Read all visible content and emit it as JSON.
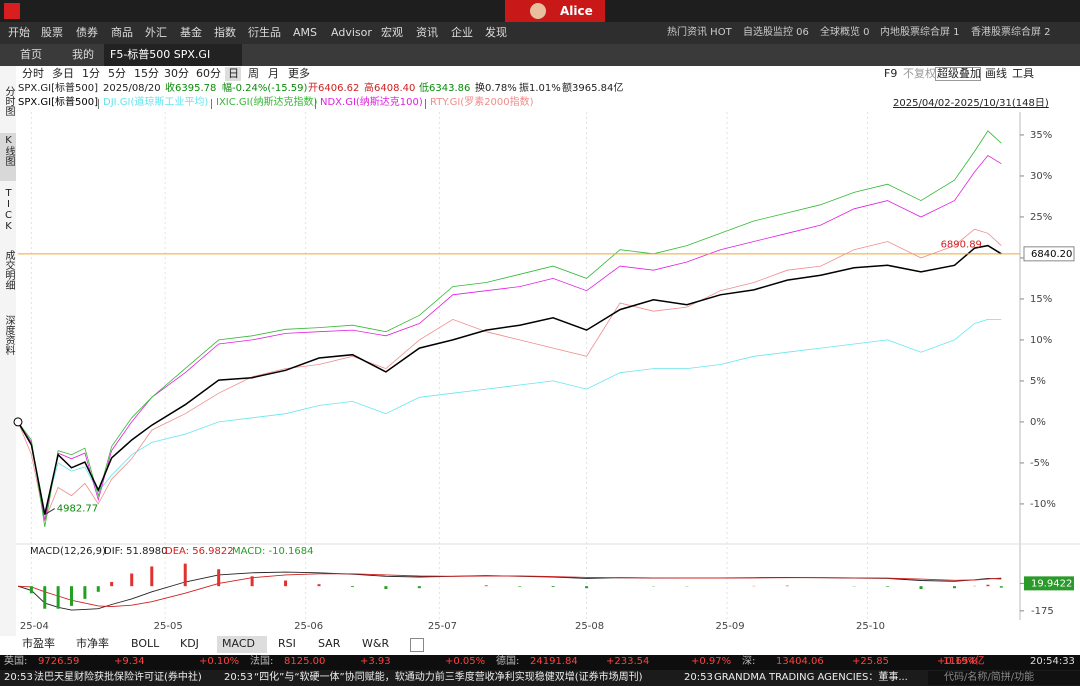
{
  "window": {
    "user": "Alice"
  },
  "menu": [
    "开始",
    "股票",
    "债券",
    "商品",
    "外汇",
    "基金",
    "指数",
    "衍生品",
    "AMS",
    "Advisor",
    "宏观",
    "资讯",
    "企业",
    "发现"
  ],
  "menu_right": [
    "热门资讯 HOT",
    "自选股监控 06",
    "全球概览 0",
    "内地股票综合屏 1",
    "香港股票综合屏 2"
  ],
  "tabs": [
    "首页",
    "我的",
    "F5-标普500 SPX.GI"
  ],
  "periods": [
    "分时",
    "多日",
    "1分",
    "5分",
    "15分",
    "30分",
    "60分",
    "日",
    "周",
    "月",
    "更多"
  ],
  "tools": [
    "F9",
    "不复权",
    "超级叠加",
    "画线",
    "工具"
  ],
  "side_tabs": [
    "分时图",
    "K线图",
    "TICK",
    "成交明细",
    "深度资料"
  ],
  "quote": [
    {
      "text": "SPX.GI[标普500]",
      "color": "#222"
    },
    {
      "text": "2025/08/20",
      "color": "#222"
    },
    {
      "text": "收6395.78",
      "color": "#0a8a0a"
    },
    {
      "text": "幅-0.24%(-15.59)",
      "color": "#0a8a0a"
    },
    {
      "text": "开6406.62",
      "color": "#d02020"
    },
    {
      "text": "高6408.40",
      "color": "#d02020"
    },
    {
      "text": "低6343.86",
      "color": "#0a8a0a"
    },
    {
      "text": "换0.78%",
      "color": "#222"
    },
    {
      "text": "振1.01%",
      "color": "#222"
    },
    {
      "text": "额3965.84亿",
      "color": "#222"
    }
  ],
  "chart_data": [
    {
      "type": "line",
      "date_range": "2025/04/02-2025/10/31(148日)",
      "last_price": "6840.20",
      "annotations": [
        "6890.89",
        "4982.77"
      ],
      "x": [
        0,
        2,
        4,
        6,
        8,
        10,
        12,
        14,
        17,
        20,
        25,
        30,
        35,
        40,
        45,
        50,
        55,
        60,
        65,
        70,
        75,
        80,
        85,
        90,
        95,
        100,
        105,
        110,
        115,
        120,
        125,
        130,
        135,
        140,
        143,
        145,
        147
      ],
      "xlim": [
        0,
        148
      ],
      "xticks": [
        {
          "value": 2,
          "label": "25-04"
        },
        {
          "value": 22,
          "label": "25-05"
        },
        {
          "value": 43,
          "label": "25-06"
        },
        {
          "value": 63,
          "label": "25-07"
        },
        {
          "value": 85,
          "label": "25-08"
        },
        {
          "value": 106,
          "label": "25-09"
        },
        {
          "value": 127,
          "label": "25-10"
        }
      ],
      "ylim": [
        -14.4,
        37.8
      ],
      "yticks": [
        {
          "value": -10,
          "label": "-10%"
        },
        {
          "value": -5,
          "label": "-5%"
        },
        {
          "value": 0,
          "label": "0%"
        },
        {
          "value": 5,
          "label": "5%"
        },
        {
          "value": 10,
          "label": "10%"
        },
        {
          "value": 15,
          "label": "15%"
        },
        {
          "value": 20,
          "label": "20%"
        },
        {
          "value": 25,
          "label": "25%"
        },
        {
          "value": 30,
          "label": "30%"
        },
        {
          "value": 35,
          "label": "35%"
        }
      ],
      "series": [
        {
          "name": "SPX.GI[标普500]",
          "color": "#000000",
          "values": [
            0,
            -2.8,
            -11.3,
            -4,
            -5.6,
            -4.9,
            -8.3,
            -4.4,
            -2.2,
            -0.4,
            2.1,
            5.1,
            5.4,
            6.3,
            7.8,
            8.2,
            6.1,
            9,
            10,
            11.2,
            11.8,
            12.7,
            11.2,
            13.7,
            14.9,
            14.3,
            15.5,
            16.1,
            17.3,
            17.9,
            18.8,
            19.1,
            18.3,
            19.1,
            21.2,
            21.5,
            20.5
          ]
        },
        {
          "name": "DJI.GI(道琼斯工业平均)",
          "color": "#66e6f0",
          "values": [
            0,
            -2.5,
            -11,
            -5,
            -6,
            -5.5,
            -8.5,
            -6.5,
            -4,
            -2.5,
            -1.5,
            0,
            0.5,
            1,
            2,
            2.5,
            1,
            3,
            3.5,
            4,
            4.5,
            5,
            4,
            6,
            6.5,
            6.5,
            7,
            8,
            8.5,
            9,
            9.5,
            10,
            8.5,
            10,
            12,
            12.5,
            12.5
          ]
        },
        {
          "name": "IXIC.GI(纳斯达克指数)",
          "color": "#33b833",
          "values": [
            0,
            -2.2,
            -12.8,
            -3.5,
            -4,
            -3.2,
            -9,
            -3,
            0.5,
            3,
            6.5,
            10,
            10.5,
            11.3,
            11.5,
            11.8,
            11,
            13,
            16.5,
            17,
            18,
            19,
            17.5,
            21,
            20.5,
            21.5,
            23,
            24.5,
            25.5,
            26.5,
            28,
            29,
            27,
            29.5,
            33,
            35.5,
            34
          ]
        },
        {
          "name": "NDX.GI(纳斯达克100)",
          "color": "#e020e0",
          "values": [
            0,
            -2.5,
            -12,
            -3.8,
            -4.5,
            -3.8,
            -9.5,
            -3.5,
            0,
            3,
            6,
            9.5,
            10,
            10.8,
            11,
            11.2,
            10.5,
            12,
            15.5,
            16,
            16.5,
            17.5,
            16,
            19,
            18.5,
            19.5,
            21,
            22,
            23,
            24,
            26,
            27,
            25,
            27,
            30.5,
            32.5,
            31.5
          ]
        },
        {
          "name": "RTY.GI(罗素2000指数)",
          "color": "#f08c8c",
          "values": [
            0,
            -4,
            -12,
            -8,
            -9,
            -7.5,
            -10,
            -7,
            -4.5,
            -1,
            1,
            3.5,
            5.5,
            6.5,
            7,
            8,
            6.5,
            10,
            12.5,
            11,
            10,
            9,
            8,
            14.5,
            13.5,
            14,
            16,
            17,
            18.5,
            19,
            21,
            22,
            20,
            21.5,
            23.5,
            23,
            21.5
          ]
        }
      ]
    },
    {
      "type": "macd",
      "title": "MACD(12,26,9)",
      "x": [
        0,
        2,
        4,
        6,
        8,
        10,
        12,
        14,
        17,
        20,
        25,
        30,
        35,
        40,
        45,
        50,
        55,
        60,
        65,
        70,
        75,
        80,
        85,
        90,
        95,
        100,
        105,
        110,
        115,
        120,
        125,
        130,
        135,
        140,
        143,
        145,
        147
      ],
      "xlim": [
        0,
        148
      ],
      "ylim": [
        -240,
        200
      ],
      "yticks": [
        19.9422,
        -175
      ],
      "series": [
        {
          "name": "DIF: 51.8980",
          "color": "#222222",
          "kind": "line",
          "values": [
            0,
            -30,
            -120,
            -150,
            -170,
            -165,
            -160,
            -130,
            -90,
            -40,
            30,
            80,
            95,
            100,
            95,
            85,
            70,
            65,
            70,
            75,
            70,
            65,
            55,
            60,
            58,
            57,
            58,
            60,
            62,
            60,
            58,
            55,
            40,
            35,
            45,
            55,
            52
          ]
        },
        {
          "name": "DEA: 56.9822",
          "color": "#d02020",
          "kind": "line",
          "values": [
            0,
            -5,
            -40,
            -70,
            -100,
            -120,
            -140,
            -145,
            -135,
            -110,
            -50,
            20,
            60,
            80,
            88,
            88,
            80,
            72,
            70,
            72,
            72,
            68,
            62,
            60,
            59,
            58,
            58,
            59,
            60,
            60,
            59,
            57,
            50,
            42,
            44,
            50,
            57
          ]
        },
        {
          "name": "MACD: -10.1684",
          "color": "#22a022",
          "positive_color": "#e03030",
          "kind": "bar",
          "values": [
            0,
            -50,
            -160,
            -160,
            -140,
            -90,
            -40,
            30,
            90,
            140,
            160,
            120,
            70,
            40,
            14,
            -6,
            -20,
            -14,
            0,
            6,
            -4,
            -6,
            -14,
            0,
            -2,
            -2,
            0,
            2,
            4,
            0,
            -2,
            -4,
            -20,
            -14,
            2,
            10,
            -10
          ]
        }
      ]
    }
  ],
  "indicator_tabs": [
    "市盈率",
    "市净率",
    "BOLL",
    "KDJ",
    "MACD",
    "RSI",
    "SAR",
    "W&R"
  ],
  "ticker": [
    {
      "name": "英国:",
      "price": "9726.59",
      "change": "+9.34",
      "pct": "+0.10%"
    },
    {
      "name": "法国:",
      "price": "8125.00",
      "change": "+3.93",
      "pct": "+0.05%"
    },
    {
      "name": "德国:",
      "price": "24191.84",
      "change": "+233.54",
      "pct": "+0.97%"
    },
    {
      "name": "深:",
      "price": "13404.06",
      "change": "+25.85",
      "pct": "+0.19%"
    }
  ],
  "turnover": "11654亿",
  "clock": "20:54:33",
  "news": [
    {
      "time": "20:53",
      "text": "法巴天星财险获批保险许可证(券中社)"
    },
    {
      "time": "20:53",
      "text": "“四化”与“软硬一体”协同赋能，软通动力前三季度营收净利实现稳健双增(证券市场周刊)"
    },
    {
      "time": "20:53",
      "text": "GRANDMA TRADING AGENCIES：董事..."
    }
  ],
  "search": "代码/名称/简拼/功能"
}
